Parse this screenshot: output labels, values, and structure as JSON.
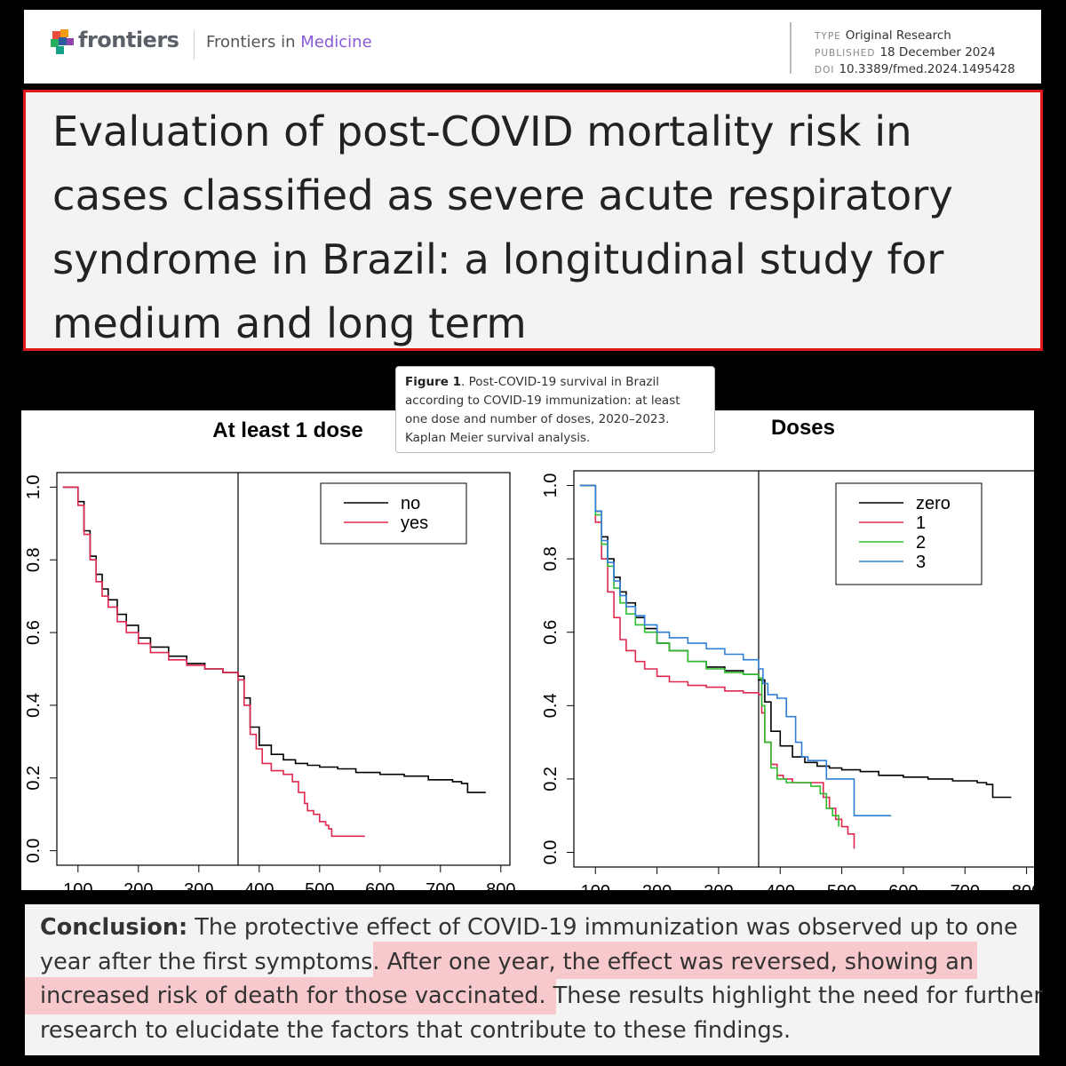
{
  "header": {
    "brand": "frontiers",
    "journal_prefix": "Frontiers in",
    "journal_name": "Medicine",
    "type_label": "TYPE",
    "type_value": "Original Research",
    "published_label": "PUBLISHED",
    "published_value": "18 December 2024",
    "doi_label": "DOI",
    "doi_value": "10.3389/fmed.2024.1495428"
  },
  "article": {
    "title": "Evaluation of post-COVID mortality risk in cases classified as severe acute respiratory syndrome in Brazil: a longitudinal study for medium and long term"
  },
  "caption": {
    "label": "Figure 1",
    "text": ". Post-COVID-19 survival in Brazil according to COVID-19 immunization: at least one dose and number of doses, 2020–2023. Kaplan Meier survival analysis."
  },
  "conclusion": {
    "label": "Conclusion:",
    "text_before": " The protective effect of COVID-19 immunization was observed up to one year after the first symptoms. ",
    "text_highlight": "After one year, the effect was reversed, showing an increased risk of death for those vaccinated.",
    "text_after": " These results highlight the need for further research to elucidate the factors that contribute to these findings."
  },
  "chart_data": [
    {
      "type": "line",
      "title": "At least 1 dose",
      "xlabel": "",
      "ylabel": "",
      "xlim": [
        65,
        815
      ],
      "ylim": [
        -0.04,
        1.04
      ],
      "xticks": [
        100,
        200,
        300,
        400,
        500,
        600,
        700,
        800
      ],
      "yticks": [
        "0.0",
        "0.2",
        "0.4",
        "0.6",
        "0.8",
        "1.0"
      ],
      "vline": 365,
      "legend": "top-right",
      "grid": false,
      "series": [
        {
          "name": "no",
          "color": "#000000",
          "x": [
            75,
            95,
            100,
            110,
            120,
            130,
            140,
            150,
            165,
            180,
            200,
            220,
            250,
            280,
            310,
            340,
            365,
            375,
            385,
            400,
            420,
            440,
            460,
            480,
            500,
            530,
            560,
            600,
            640,
            680,
            720,
            735,
            745,
            775
          ],
          "y": [
            1.0,
            1.0,
            0.96,
            0.88,
            0.81,
            0.76,
            0.72,
            0.69,
            0.65,
            0.62,
            0.585,
            0.56,
            0.535,
            0.515,
            0.5,
            0.49,
            0.48,
            0.42,
            0.34,
            0.29,
            0.265,
            0.25,
            0.24,
            0.235,
            0.23,
            0.225,
            0.215,
            0.21,
            0.205,
            0.195,
            0.19,
            0.185,
            0.16,
            0.16
          ]
        },
        {
          "name": "yes",
          "color": "#e0284f",
          "x": [
            75,
            95,
            100,
            110,
            120,
            130,
            140,
            150,
            165,
            180,
            200,
            220,
            250,
            280,
            310,
            340,
            365,
            375,
            385,
            395,
            405,
            420,
            440,
            455,
            465,
            475,
            480,
            490,
            500,
            510,
            515,
            520,
            535,
            575
          ],
          "y": [
            1.0,
            1.0,
            0.95,
            0.87,
            0.8,
            0.74,
            0.7,
            0.67,
            0.63,
            0.6,
            0.57,
            0.545,
            0.525,
            0.51,
            0.5,
            0.49,
            0.47,
            0.4,
            0.32,
            0.28,
            0.24,
            0.22,
            0.21,
            0.19,
            0.16,
            0.13,
            0.11,
            0.1,
            0.08,
            0.07,
            0.06,
            0.04,
            0.04,
            0.04
          ]
        }
      ]
    },
    {
      "type": "line",
      "title": "Doses",
      "xlabel": "",
      "ylabel": "",
      "xlim": [
        65,
        815
      ],
      "ylim": [
        -0.04,
        1.04
      ],
      "xticks": [
        100,
        200,
        300,
        400,
        500,
        600,
        700,
        800
      ],
      "yticks": [
        "0.0",
        "0.2",
        "0.4",
        "0.6",
        "0.8",
        "1.0"
      ],
      "vline": 365,
      "legend": "top-right",
      "grid": false,
      "series": [
        {
          "name": "zero",
          "color": "#000000",
          "x": [
            75,
            90,
            100,
            110,
            120,
            130,
            140,
            150,
            165,
            180,
            200,
            220,
            250,
            280,
            310,
            340,
            365,
            375,
            385,
            400,
            420,
            440,
            460,
            480,
            500,
            530,
            560,
            600,
            640,
            680,
            720,
            735,
            745,
            775
          ],
          "y": [
            1.0,
            1.0,
            0.93,
            0.86,
            0.8,
            0.75,
            0.71,
            0.68,
            0.64,
            0.61,
            0.57,
            0.55,
            0.52,
            0.505,
            0.495,
            0.485,
            0.47,
            0.41,
            0.33,
            0.29,
            0.26,
            0.245,
            0.235,
            0.23,
            0.225,
            0.22,
            0.21,
            0.205,
            0.2,
            0.195,
            0.19,
            0.185,
            0.15,
            0.15
          ]
        },
        {
          "name": "1",
          "color": "#e0284f",
          "x": [
            75,
            90,
            100,
            110,
            120,
            130,
            140,
            150,
            165,
            180,
            200,
            220,
            250,
            280,
            310,
            340,
            365,
            370,
            375,
            385,
            395,
            405,
            420,
            440,
            460,
            470,
            480,
            490,
            500,
            510,
            520
          ],
          "y": [
            1.0,
            1.0,
            0.9,
            0.8,
            0.71,
            0.64,
            0.58,
            0.55,
            0.52,
            0.5,
            0.48,
            0.465,
            0.455,
            0.45,
            0.44,
            0.435,
            0.43,
            0.38,
            0.3,
            0.24,
            0.21,
            0.2,
            0.19,
            0.19,
            0.19,
            0.15,
            0.12,
            0.09,
            0.07,
            0.05,
            0.01
          ]
        },
        {
          "name": "2",
          "color": "#2ebd2e",
          "x": [
            75,
            90,
            100,
            110,
            120,
            130,
            140,
            150,
            165,
            180,
            200,
            220,
            250,
            280,
            310,
            340,
            365,
            370,
            375,
            385,
            395,
            410,
            430,
            450,
            465,
            475,
            485,
            495
          ],
          "y": [
            1.0,
            1.0,
            0.92,
            0.84,
            0.78,
            0.72,
            0.68,
            0.65,
            0.62,
            0.6,
            0.57,
            0.55,
            0.52,
            0.5,
            0.49,
            0.485,
            0.475,
            0.4,
            0.3,
            0.23,
            0.2,
            0.19,
            0.19,
            0.18,
            0.16,
            0.12,
            0.1,
            0.07
          ]
        },
        {
          "name": "3",
          "color": "#2f7fd8",
          "x": [
            75,
            90,
            100,
            110,
            120,
            130,
            140,
            150,
            165,
            180,
            200,
            220,
            250,
            280,
            310,
            340,
            365,
            372,
            380,
            395,
            410,
            425,
            435,
            445,
            465,
            475,
            490,
            510,
            520,
            545,
            580
          ],
          "y": [
            1.0,
            1.0,
            0.93,
            0.85,
            0.79,
            0.74,
            0.7,
            0.67,
            0.645,
            0.62,
            0.6,
            0.585,
            0.57,
            0.555,
            0.54,
            0.525,
            0.5,
            0.46,
            0.43,
            0.42,
            0.37,
            0.3,
            0.26,
            0.25,
            0.25,
            0.2,
            0.2,
            0.2,
            0.1,
            0.1,
            0.1
          ]
        }
      ]
    }
  ]
}
